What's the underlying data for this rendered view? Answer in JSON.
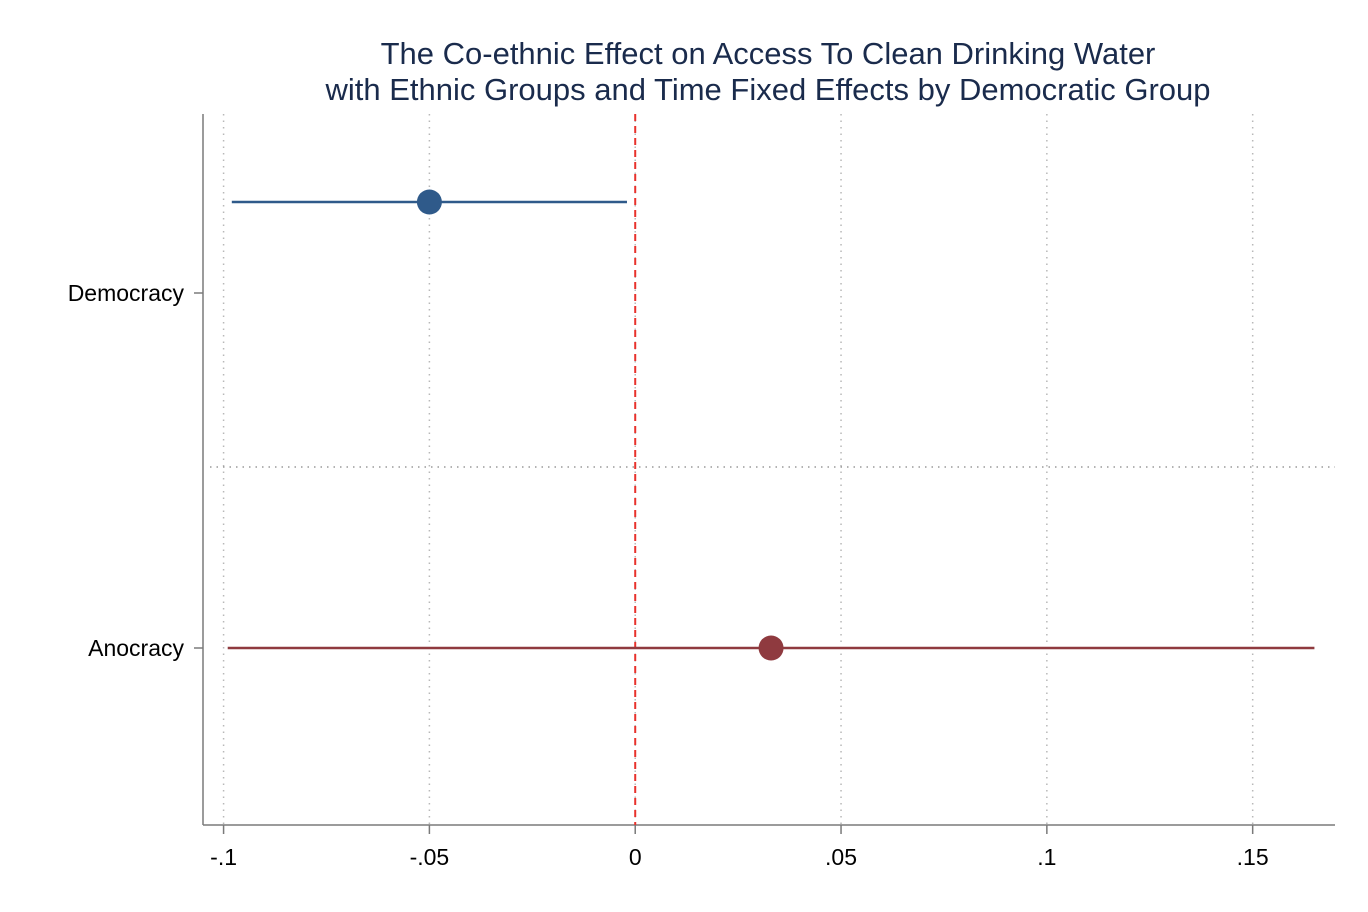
{
  "chart_data": {
    "type": "scatter",
    "subtype": "coefficient-plot",
    "title": [
      "The Co-ethnic Effect on Access To Clean Drinking Water",
      "with Ethnic Groups and Time Fixed Effects by Democratic Group"
    ],
    "xlabel": "",
    "ylabel": "",
    "xlim": [
      -0.105,
      0.17
    ],
    "x_ticks": [
      -0.1,
      -0.05,
      0,
      0.05,
      0.1,
      0.15
    ],
    "x_tick_labels": [
      "-.1",
      "-.05",
      "0",
      ".05",
      ".1",
      ".15"
    ],
    "categories": [
      "Democracy",
      "Anocracy"
    ],
    "reference_line": {
      "x": 0,
      "color": "#e8322c",
      "style": "dashed"
    },
    "grid": true,
    "legend": "none",
    "series": [
      {
        "category": "Democracy",
        "estimate": -0.05,
        "ci_low": -0.098,
        "ci_high": -0.002,
        "color": "#2f5a8a"
      },
      {
        "category": "Anocracy",
        "estimate": 0.033,
        "ci_low": -0.099,
        "ci_high": 0.165,
        "color": "#8f3a3f"
      }
    ]
  }
}
